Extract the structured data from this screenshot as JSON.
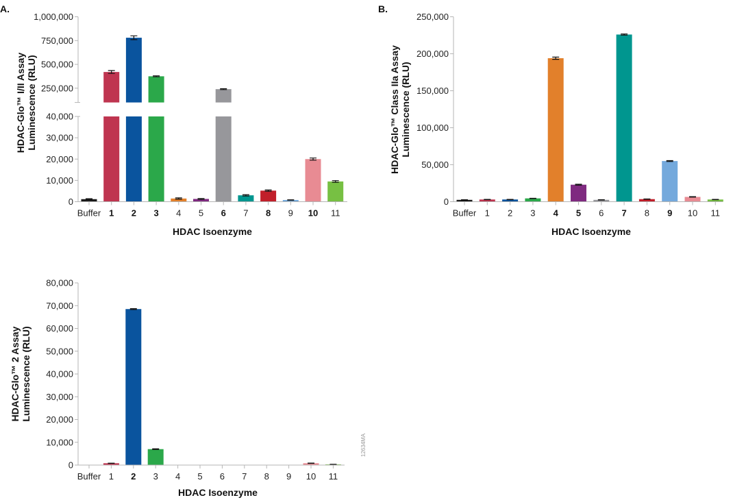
{
  "watermark": "12634MA",
  "colors": [
    "#1a1a1a",
    "#bf3550",
    "#0a549e",
    "#2ba84a",
    "#e2802b",
    "#7f2a80",
    "#97979b",
    "#00968f",
    "#c11f2a",
    "#74a9dc",
    "#e88b93",
    "#77c043"
  ],
  "chart_data": [
    {
      "panel": "A.",
      "type": "bar",
      "categories": [
        "Buffer",
        "1",
        "2",
        "3",
        "4",
        "5",
        "6",
        "7",
        "8",
        "9",
        "10",
        "11"
      ],
      "bold_categories": [
        "1",
        "2",
        "3",
        "6",
        "8",
        "10"
      ],
      "values": [
        1200,
        420000,
        780000,
        375000,
        1500,
        1300,
        240000,
        3000,
        5200,
        800,
        20000,
        9500
      ],
      "errors": [
        200,
        15000,
        20000,
        5000,
        300,
        200,
        5000,
        300,
        300,
        100,
        500,
        400
      ],
      "xlabel": "HDAC Isoenzyme",
      "ylabel": [
        "HDAC-Glo™ I/II Assay",
        "Luminescence (RLU)"
      ],
      "y_break": true,
      "ylim_lower": [
        0,
        40000
      ],
      "yticks_lower": [
        "0",
        "10,000",
        "20,000",
        "30,000",
        "40,000"
      ],
      "ylim_upper": [
        100000,
        1000000
      ],
      "yticks_upper": [
        "250,000",
        "500,000",
        "750,000",
        "1,000,000"
      ],
      "grid": false
    },
    {
      "panel": "B.",
      "type": "bar",
      "categories": [
        "Buffer",
        "1",
        "2",
        "3",
        "4",
        "5",
        "6",
        "7",
        "8",
        "9",
        "10",
        "11"
      ],
      "bold_categories": [
        "4",
        "5",
        "7",
        "9"
      ],
      "values": [
        2500,
        3000,
        3000,
        4500,
        194000,
        23000,
        2500,
        226000,
        3500,
        55000,
        6500,
        3000
      ],
      "errors": [
        200,
        200,
        200,
        200,
        1500,
        600,
        200,
        800,
        200,
        600,
        300,
        200
      ],
      "xlabel": "HDAC Isoenzyme",
      "ylabel": [
        "HDAC-Glo™ Class IIa Assay",
        "Luminescence (RLU)"
      ],
      "ylim": [
        0,
        250000
      ],
      "yticks": [
        "0",
        "50,000",
        "100,000",
        "150,000",
        "200,000",
        "250,000"
      ],
      "grid": false
    },
    {
      "panel": "",
      "type": "bar",
      "categories": [
        "Buffer",
        "1",
        "2",
        "3",
        "4",
        "5",
        "6",
        "7",
        "8",
        "9",
        "10",
        "11"
      ],
      "bold_categories": [
        "2"
      ],
      "values": [
        0,
        800,
        68500,
        7000,
        0,
        0,
        100,
        100,
        100,
        0,
        800,
        300
      ],
      "errors": [
        0,
        50,
        200,
        150,
        0,
        0,
        0,
        0,
        0,
        0,
        60,
        30
      ],
      "xlabel": "HDAC Isoenzyme",
      "ylabel": [
        "HDAC-Glo™ 2 Assay",
        "Luminescence (RLU)"
      ],
      "ylim": [
        0,
        80000
      ],
      "yticks": [
        "0",
        "10,000",
        "20,000",
        "30,000",
        "40,000",
        "50,000",
        "60,000",
        "70,000",
        "80,000"
      ],
      "grid": false
    }
  ]
}
